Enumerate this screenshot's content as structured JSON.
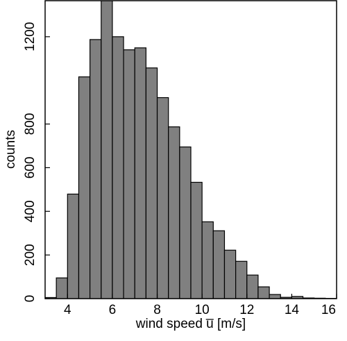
{
  "chart_data": {
    "type": "histogram",
    "x_label": "wind speed u̅ [m/s]",
    "y_label": "counts",
    "bins": [
      3,
      3.5,
      4,
      4.5,
      5,
      5.5,
      6,
      6.5,
      7,
      7.5,
      8,
      8.5,
      9,
      9.5,
      10,
      10.5,
      11,
      11.5,
      12,
      12.5,
      13,
      13.5,
      14,
      14.5,
      15,
      15.5,
      16
    ],
    "values": [
      5,
      95,
      479,
      1016,
      1187,
      1370,
      1200,
      1140,
      1149,
      1057,
      921,
      787,
      695,
      533,
      352,
      311,
      222,
      171,
      108,
      54,
      19,
      6,
      10,
      3,
      2,
      1
    ],
    "color": "#808080",
    "xlim": [
      3,
      16
    ],
    "xticks": [
      4,
      6,
      8,
      10,
      12,
      14,
      16
    ],
    "ylim": [
      0,
      1365
    ],
    "yticks": [
      0,
      200,
      400,
      600,
      800,
      1200
    ]
  }
}
